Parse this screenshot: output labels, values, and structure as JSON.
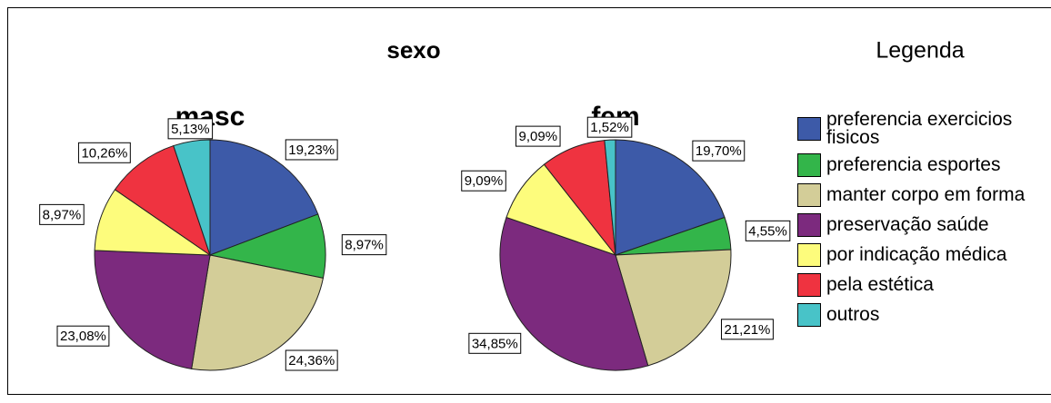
{
  "title": "sexo",
  "legend": {
    "title": "Legenda",
    "items": [
      "preferencia exercicios fisicos",
      "preferencia esportes",
      "manter corpo em forma",
      "preservação saúde",
      "por indicação médica",
      "pela estética",
      "outros"
    ],
    "colors": [
      "#3d5aa8",
      "#33b54a",
      "#d3cd98",
      "#7c2a7e",
      "#fdfc7c",
      "#ef3340",
      "#48c3c8"
    ]
  },
  "chart_data": [
    {
      "type": "pie",
      "title": "masc",
      "values": [
        19.23,
        8.97,
        24.36,
        23.08,
        8.97,
        10.26,
        5.13
      ],
      "value_labels": [
        "19,23%",
        "8,97%",
        "24,36%",
        "23,08%",
        "8,97%",
        "10,26%",
        "5,13%"
      ]
    },
    {
      "type": "pie",
      "title": "fem",
      "values": [
        19.7,
        4.55,
        21.21,
        34.85,
        9.09,
        9.09,
        1.52
      ],
      "value_labels": [
        "19,70%",
        "4,55%",
        "21,21%",
        "34,85%",
        "9,09%",
        "9,09%",
        "1,52%"
      ]
    }
  ]
}
